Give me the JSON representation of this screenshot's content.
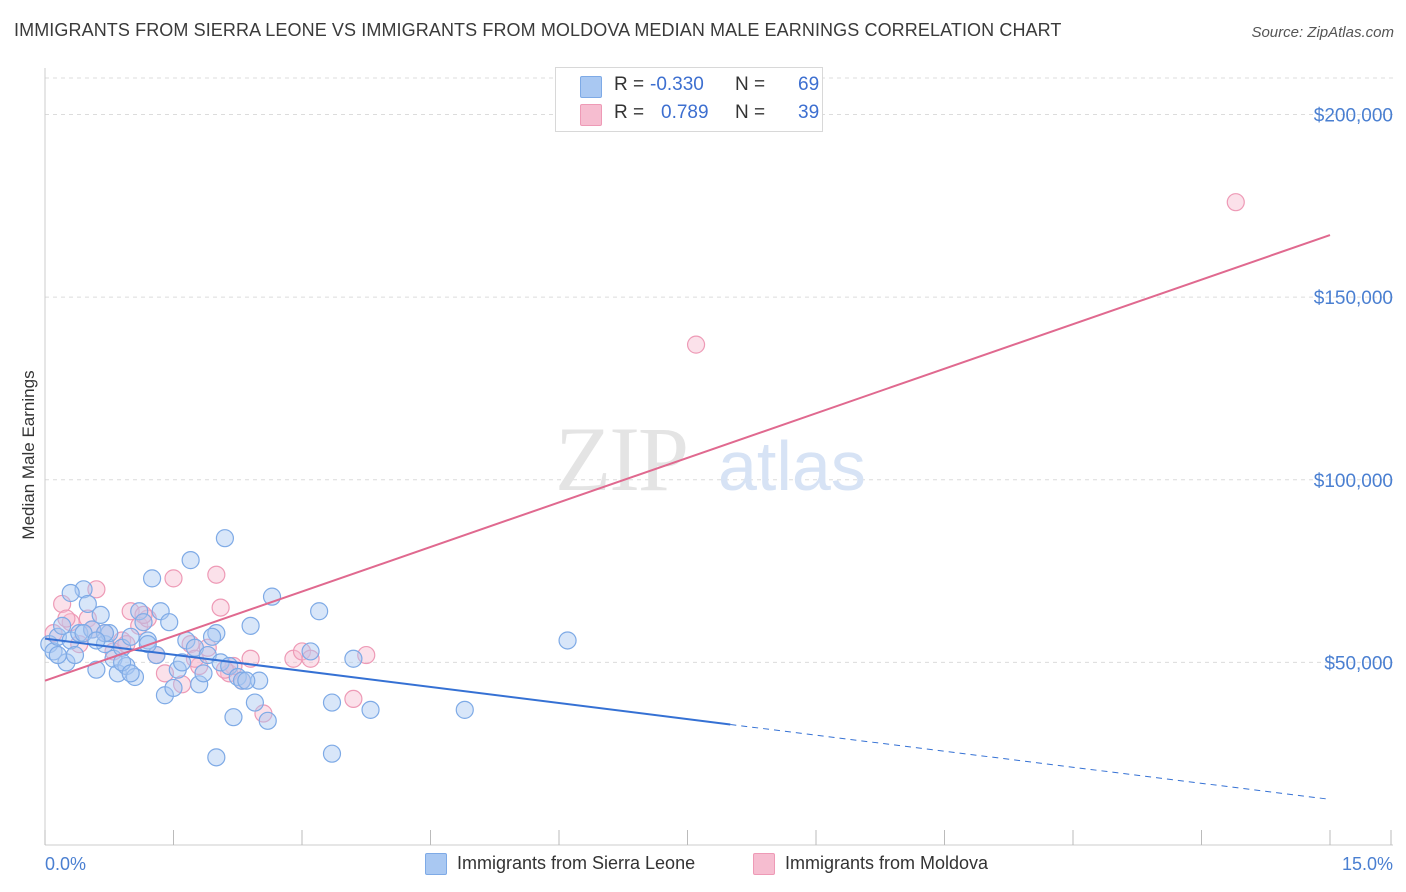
{
  "title": "IMMIGRANTS FROM SIERRA LEONE VS IMMIGRANTS FROM MOLDOVA MEDIAN MALE EARNINGS CORRELATION CHART",
  "source": "Source: ZipAtlas.com",
  "watermark": {
    "zip": "ZIP",
    "atlas": "atlas"
  },
  "legend": {
    "r_label": "R =",
    "n_label": "N =",
    "rows": [
      {
        "name": "Immigrants from Sierra Leone",
        "r": "-0.330",
        "n": "69"
      },
      {
        "name": "Immigrants from Moldova",
        "r": "0.789",
        "n": "39"
      }
    ]
  },
  "colors": {
    "blue_fill": "#a9c8f2",
    "blue_stroke": "#7eaae6",
    "blue_line": "#3571d4",
    "pink_fill": "#f6bdd0",
    "pink_stroke": "#ee9ab6",
    "pink_line": "#e0698f",
    "tick_text": "#4a7fd1",
    "grid": "#dcdcdc"
  },
  "chart_data": {
    "type": "scatter",
    "xlabel": "",
    "ylabel": "Median Male Earnings",
    "xlim": [
      0,
      15
    ],
    "ylim": [
      0,
      210000
    ],
    "x_tick_labels": [
      "0.0%",
      "15.0%"
    ],
    "y_ticks": [
      50000,
      100000,
      150000,
      200000
    ],
    "y_tick_labels": [
      "$50,000",
      "$100,000",
      "$150,000",
      "$200,000"
    ],
    "series": [
      {
        "name": "Immigrants from Sierra Leone",
        "color": "blue",
        "points": [
          [
            0.05,
            55000
          ],
          [
            0.1,
            53000
          ],
          [
            0.15,
            57000
          ],
          [
            0.2,
            60000
          ],
          [
            0.25,
            50000
          ],
          [
            0.3,
            56000
          ],
          [
            0.35,
            52000
          ],
          [
            0.4,
            58000
          ],
          [
            0.45,
            70000
          ],
          [
            0.5,
            66000
          ],
          [
            0.55,
            59000
          ],
          [
            0.6,
            48000
          ],
          [
            0.65,
            63000
          ],
          [
            0.7,
            55000
          ],
          [
            0.75,
            58000
          ],
          [
            0.8,
            51000
          ],
          [
            0.85,
            47000
          ],
          [
            0.9,
            54000
          ],
          [
            0.95,
            49000
          ],
          [
            1.0,
            57000
          ],
          [
            1.05,
            46000
          ],
          [
            1.1,
            64000
          ],
          [
            1.15,
            61000
          ],
          [
            1.2,
            56000
          ],
          [
            1.25,
            73000
          ],
          [
            1.3,
            52000
          ],
          [
            1.35,
            64000
          ],
          [
            1.4,
            41000
          ],
          [
            1.5,
            43000
          ],
          [
            1.55,
            48000
          ],
          [
            1.6,
            50000
          ],
          [
            1.65,
            56000
          ],
          [
            1.7,
            78000
          ],
          [
            1.75,
            54000
          ],
          [
            1.8,
            44000
          ],
          [
            1.85,
            47000
          ],
          [
            1.9,
            52000
          ],
          [
            2.0,
            58000
          ],
          [
            2.05,
            50000
          ],
          [
            2.1,
            84000
          ],
          [
            2.15,
            49000
          ],
          [
            2.2,
            35000
          ],
          [
            2.25,
            46000
          ],
          [
            2.3,
            45000
          ],
          [
            2.4,
            60000
          ],
          [
            2.45,
            39000
          ],
          [
            2.5,
            45000
          ],
          [
            2.6,
            34000
          ],
          [
            2.65,
            68000
          ],
          [
            3.1,
            53000
          ],
          [
            3.2,
            64000
          ],
          [
            3.35,
            39000
          ],
          [
            3.6,
            51000
          ],
          [
            3.8,
            37000
          ],
          [
            4.9,
            37000
          ],
          [
            6.1,
            56000
          ],
          [
            2.0,
            24000
          ],
          [
            3.35,
            25000
          ],
          [
            0.7,
            58000
          ],
          [
            0.9,
            50000
          ],
          [
            1.0,
            47000
          ],
          [
            1.2,
            55000
          ],
          [
            0.3,
            69000
          ],
          [
            0.45,
            58000
          ],
          [
            1.45,
            61000
          ],
          [
            0.6,
            56000
          ],
          [
            2.35,
            45000
          ],
          [
            0.15,
            52000
          ],
          [
            1.95,
            57000
          ]
        ]
      },
      {
        "name": "Immigrants from Moldova",
        "color": "pink",
        "points": [
          [
            0.1,
            58000
          ],
          [
            0.2,
            66000
          ],
          [
            0.3,
            61000
          ],
          [
            0.4,
            55000
          ],
          [
            0.5,
            62000
          ],
          [
            0.55,
            59000
          ],
          [
            0.6,
            70000
          ],
          [
            0.7,
            58000
          ],
          [
            0.8,
            53000
          ],
          [
            0.9,
            56000
          ],
          [
            1.0,
            64000
          ],
          [
            1.1,
            60000
          ],
          [
            1.2,
            62000
          ],
          [
            1.3,
            52000
          ],
          [
            1.4,
            47000
          ],
          [
            1.5,
            73000
          ],
          [
            1.6,
            44000
          ],
          [
            1.7,
            55000
          ],
          [
            1.8,
            49000
          ],
          [
            1.9,
            54000
          ],
          [
            2.0,
            74000
          ],
          [
            2.05,
            65000
          ],
          [
            2.15,
            47000
          ],
          [
            2.2,
            49000
          ],
          [
            2.3,
            45000
          ],
          [
            2.4,
            51000
          ],
          [
            2.55,
            36000
          ],
          [
            2.9,
            51000
          ],
          [
            3.0,
            53000
          ],
          [
            3.1,
            51000
          ],
          [
            3.6,
            40000
          ],
          [
            3.75,
            52000
          ],
          [
            7.6,
            137000
          ],
          [
            13.9,
            176000
          ],
          [
            0.25,
            62000
          ],
          [
            1.75,
            51000
          ],
          [
            2.1,
            48000
          ],
          [
            1.15,
            63000
          ],
          [
            0.95,
            55000
          ]
        ]
      }
    ],
    "trend_lines": [
      {
        "series": "Immigrants from Sierra Leone",
        "solid_from": [
          0,
          56500
        ],
        "solid_to": [
          8.0,
          33000
        ],
        "dashed_to": [
          15,
          12500
        ]
      },
      {
        "series": "Immigrants from Moldova",
        "from": [
          0,
          45000
        ],
        "to": [
          15,
          167000
        ]
      }
    ]
  }
}
